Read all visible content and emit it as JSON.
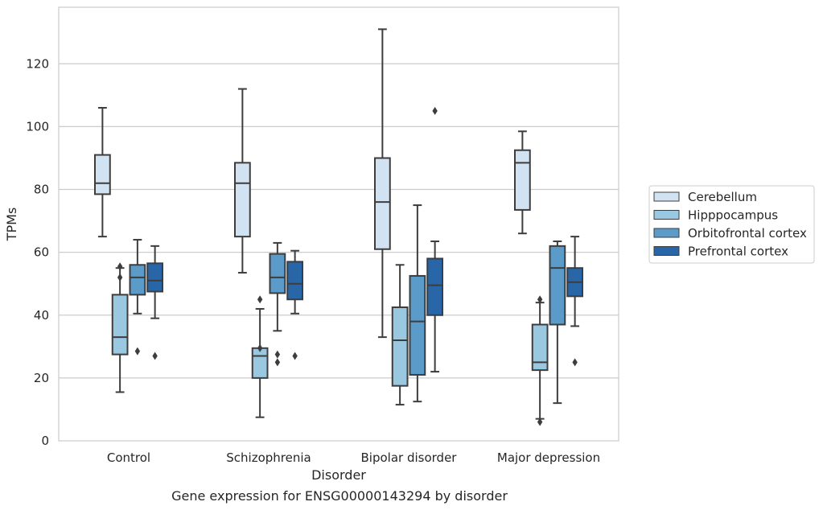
{
  "caption": "Gene expression for ENSG00000143294 by disorder",
  "chart_data": {
    "type": "box",
    "title": "",
    "xlabel": "Disorder",
    "ylabel": "TPMs",
    "ylim": [
      0,
      138
    ],
    "yticks": [
      0,
      20,
      40,
      60,
      80,
      100,
      120
    ],
    "categories": [
      "Control",
      "Schizophrenia",
      "Bipolar disorder",
      "Major depression"
    ],
    "grid": "horizontal",
    "legend_position": "right",
    "series": [
      {
        "name": "Cerebellum",
        "color": "#d1e2f2",
        "boxes": [
          {
            "whisker_low": 65,
            "q1": 78.5,
            "median": 82,
            "q3": 91,
            "whisker_high": 106,
            "outliers": []
          },
          {
            "whisker_low": 53.5,
            "q1": 65,
            "median": 82,
            "q3": 88.5,
            "whisker_high": 112,
            "outliers": []
          },
          {
            "whisker_low": 33,
            "q1": 61,
            "median": 76,
            "q3": 90,
            "whisker_high": 131,
            "outliers": []
          },
          {
            "whisker_low": 66,
            "q1": 73.5,
            "median": 88.5,
            "q3": 92.5,
            "whisker_high": 98.5,
            "outliers": []
          }
        ]
      },
      {
        "name": "Hipppocampus",
        "color": "#9ac8e0",
        "boxes": [
          {
            "whisker_low": 15.5,
            "q1": 27.5,
            "median": 33,
            "q3": 46.5,
            "whisker_high": 55,
            "outliers": [
              52,
              55.5
            ]
          },
          {
            "whisker_low": 7.5,
            "q1": 20,
            "median": 27,
            "q3": 29.5,
            "whisker_high": 42,
            "outliers": [
              29.5,
              45
            ]
          },
          {
            "whisker_low": 11.5,
            "q1": 17.5,
            "median": 32,
            "q3": 42.5,
            "whisker_high": 56,
            "outliers": []
          },
          {
            "whisker_low": 7,
            "q1": 22.5,
            "median": 25,
            "q3": 37,
            "whisker_high": 44,
            "outliers": [
              6,
              45
            ]
          }
        ]
      },
      {
        "name": "Orbitofrontal cortex",
        "color": "#5a9bc9",
        "boxes": [
          {
            "whisker_low": 40.5,
            "q1": 46.5,
            "median": 52,
            "q3": 56,
            "whisker_high": 64,
            "outliers": [
              28.5
            ]
          },
          {
            "whisker_low": 35,
            "q1": 47,
            "median": 52,
            "q3": 59.5,
            "whisker_high": 63,
            "outliers": [
              25,
              27.5
            ]
          },
          {
            "whisker_low": 12.5,
            "q1": 21,
            "median": 38,
            "q3": 52.5,
            "whisker_high": 75,
            "outliers": []
          },
          {
            "whisker_low": 12,
            "q1": 37,
            "median": 55,
            "q3": 62,
            "whisker_high": 63.5,
            "outliers": []
          }
        ]
      },
      {
        "name": "Prefrontal cortex",
        "color": "#2866a8",
        "boxes": [
          {
            "whisker_low": 39,
            "q1": 47.5,
            "median": 51,
            "q3": 56.5,
            "whisker_high": 62,
            "outliers": [
              27
            ]
          },
          {
            "whisker_low": 40.5,
            "q1": 45,
            "median": 50,
            "q3": 57,
            "whisker_high": 60.5,
            "outliers": [
              27
            ]
          },
          {
            "whisker_low": 22,
            "q1": 40,
            "median": 49.5,
            "q3": 58,
            "whisker_high": 63.5,
            "outliers": [
              105
            ]
          },
          {
            "whisker_low": 36.5,
            "q1": 46,
            "median": 50.5,
            "q3": 55,
            "whisker_high": 65,
            "outliers": [
              25
            ]
          }
        ]
      }
    ]
  }
}
